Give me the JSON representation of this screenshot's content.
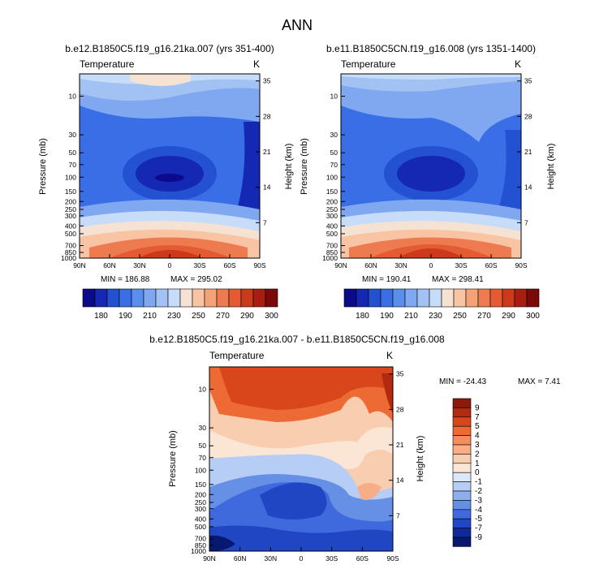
{
  "page_title": "ANN",
  "chart_data": [
    {
      "type": "heatmap",
      "id": "p1",
      "title": "b.e12.B1850C5.f19_g16.21ka.007 (yrs 351-400)",
      "variable": "Temperature",
      "units": "K",
      "xlabel": "",
      "ylabel": "Pressure (mb)",
      "y2label": "Height (km)",
      "x_ticks": [
        "90N",
        "60N",
        "30N",
        "0",
        "30S",
        "60S",
        "90S"
      ],
      "y_ticks": [
        10,
        30,
        50,
        70,
        100,
        150,
        200,
        250,
        300,
        400,
        500,
        700,
        850,
        1000
      ],
      "y2_ticks": [
        35,
        28,
        21,
        14,
        7
      ],
      "min_label": "MIN = 186.88",
      "max_label": "MAX = 295.02",
      "min": 186.88,
      "max": 295.02,
      "colorbar_labels": [
        "180",
        "190",
        "210",
        "230",
        "250",
        "270",
        "290",
        "300"
      ],
      "colorbar_colors": [
        "#0a0a8a",
        "#1428b4",
        "#2450d2",
        "#3a6ee6",
        "#5a8eec",
        "#7fa8f0",
        "#a3c2f4",
        "#c6dcf8",
        "#f6e2d2",
        "#f8c4a4",
        "#f4a278",
        "#ee7a50",
        "#e45a32",
        "#cc3a1c",
        "#a81e12",
        "#7a0a0a"
      ]
    },
    {
      "type": "heatmap",
      "id": "p2",
      "title": "b.e11.B1850C5CN.f19_g16.008 (yrs 1351-1400)",
      "variable": "Temperature",
      "units": "K",
      "ylabel": "Pressure (mb)",
      "y2label": "Height (km)",
      "x_ticks": [
        "90N",
        "60N",
        "30N",
        "0",
        "30S",
        "60S",
        "90S"
      ],
      "y_ticks": [
        10,
        30,
        50,
        70,
        100,
        150,
        200,
        250,
        300,
        400,
        500,
        700,
        850,
        1000
      ],
      "y2_ticks": [
        35,
        28,
        21,
        14,
        7
      ],
      "min_label": "MIN = 190.41",
      "max_label": "MAX = 298.41",
      "min": 190.41,
      "max": 298.41,
      "colorbar_labels": [
        "180",
        "190",
        "210",
        "230",
        "250",
        "270",
        "290",
        "300"
      ]
    },
    {
      "type": "heatmap",
      "id": "p3",
      "title": "b.e12.B1850C5.f19_g16.21ka.007 - b.e11.B1850C5CN.f19_g16.008",
      "variable": "Temperature",
      "units": "K",
      "ylabel": "Pressure (mb)",
      "y2label": "Height (km)",
      "x_ticks": [
        "90N",
        "60N",
        "30N",
        "0",
        "30S",
        "60S",
        "90S"
      ],
      "y_ticks": [
        10,
        30,
        50,
        70,
        100,
        150,
        200,
        250,
        300,
        400,
        500,
        700,
        850,
        1000
      ],
      "y2_ticks": [
        35,
        28,
        21,
        14,
        7
      ],
      "min_label": "MIN = -24.43",
      "max_label": "MAX =   7.41",
      "min": -24.43,
      "max": 7.41,
      "colorbar_labels": [
        "9",
        "7",
        "5",
        "4",
        "3",
        "2",
        "1",
        "0",
        "-1",
        "-2",
        "-3",
        "-4",
        "-5",
        "-7",
        "-9"
      ],
      "colorbar_colors": [
        "#8a1a0a",
        "#b22a10",
        "#d8461c",
        "#ee6a34",
        "#f48c5c",
        "#f7ae86",
        "#f9ceb0",
        "#fbe6d6",
        "#dce8fa",
        "#b6cef6",
        "#8cb0ee",
        "#6690e6",
        "#3e6ade",
        "#2046c4",
        "#0c2a9a",
        "#061870"
      ]
    }
  ]
}
